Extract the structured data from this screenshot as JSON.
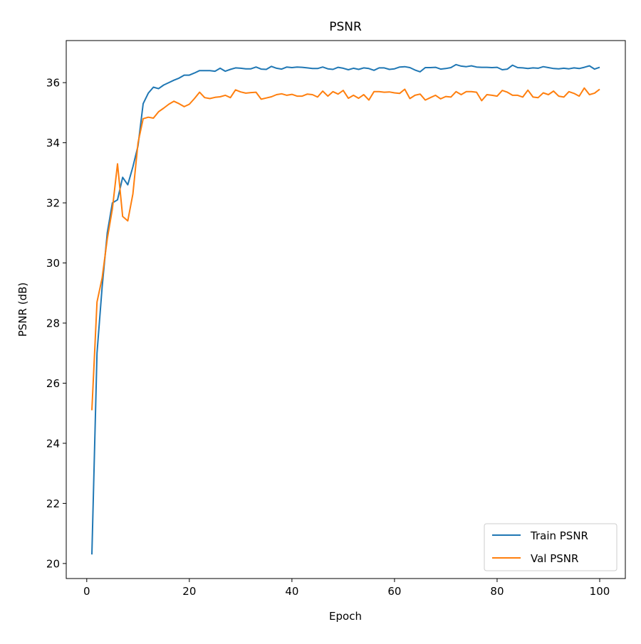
{
  "chart_data": {
    "type": "line",
    "title": "PSNR",
    "xlabel": "Epoch",
    "ylabel": "PSNR (dB)",
    "xlim": [
      -4,
      105
    ],
    "ylim": [
      19.5,
      37.4
    ],
    "xticks": [
      0,
      20,
      40,
      60,
      80,
      100
    ],
    "yticks": [
      20,
      22,
      24,
      26,
      28,
      30,
      32,
      34,
      36
    ],
    "grid": false,
    "legend_position": "lower-right",
    "x": [
      1,
      2,
      3,
      4,
      5,
      6,
      7,
      8,
      9,
      10,
      11,
      12,
      13,
      14,
      15,
      16,
      17,
      18,
      19,
      20,
      21,
      22,
      23,
      24,
      25,
      26,
      27,
      28,
      29,
      30,
      31,
      32,
      33,
      34,
      35,
      36,
      37,
      38,
      39,
      40,
      41,
      42,
      43,
      44,
      45,
      46,
      47,
      48,
      49,
      50,
      51,
      52,
      53,
      54,
      55,
      56,
      57,
      58,
      59,
      60,
      61,
      62,
      63,
      64,
      65,
      66,
      67,
      68,
      69,
      70,
      71,
      72,
      73,
      74,
      75,
      76,
      77,
      78,
      79,
      80,
      81,
      82,
      83,
      84,
      85,
      86,
      87,
      88,
      89,
      90,
      91,
      92,
      93,
      94,
      95,
      96,
      97,
      98,
      99,
      100
    ],
    "series": [
      {
        "name": "Train PSNR",
        "color": "#1f77b4",
        "values": [
          20.3,
          27.0,
          29.2,
          31.0,
          32.0,
          32.1,
          32.85,
          32.6,
          33.2,
          33.9,
          35.3,
          35.65,
          35.85,
          35.8,
          35.92,
          36.0,
          36.08,
          36.15,
          36.25,
          36.25,
          36.32,
          36.4,
          36.4,
          36.4,
          36.38,
          36.48,
          36.38,
          36.44,
          36.49,
          36.48,
          36.46,
          36.46,
          36.52,
          36.45,
          36.44,
          36.54,
          36.48,
          36.45,
          36.52,
          36.5,
          36.52,
          36.51,
          36.49,
          36.47,
          36.47,
          36.52,
          36.46,
          36.44,
          36.51,
          36.48,
          36.43,
          36.48,
          36.44,
          36.49,
          36.47,
          36.41,
          36.49,
          36.49,
          36.44,
          36.46,
          36.52,
          36.53,
          36.5,
          36.42,
          36.36,
          36.5,
          36.5,
          36.51,
          36.45,
          36.47,
          36.5,
          36.6,
          36.55,
          36.53,
          36.56,
          36.52,
          36.51,
          36.51,
          36.5,
          36.51,
          36.43,
          36.45,
          36.58,
          36.5,
          36.49,
          36.47,
          36.49,
          36.48,
          36.53,
          36.5,
          36.47,
          36.46,
          36.48,
          36.46,
          36.49,
          36.47,
          36.51,
          36.56,
          36.45,
          36.51
        ]
      },
      {
        "name": "Val PSNR",
        "color": "#ff7f0e",
        "values": [
          25.1,
          28.7,
          29.5,
          30.8,
          31.8,
          33.3,
          31.55,
          31.4,
          32.3,
          34.0,
          34.8,
          34.85,
          34.82,
          35.03,
          35.15,
          35.28,
          35.38,
          35.3,
          35.2,
          35.28,
          35.47,
          35.68,
          35.5,
          35.47,
          35.51,
          35.53,
          35.58,
          35.5,
          35.76,
          35.69,
          35.65,
          35.67,
          35.68,
          35.45,
          35.49,
          35.53,
          35.6,
          35.63,
          35.58,
          35.61,
          35.55,
          35.55,
          35.62,
          35.6,
          35.52,
          35.72,
          35.55,
          35.7,
          35.62,
          35.74,
          35.48,
          35.58,
          35.48,
          35.6,
          35.42,
          35.7,
          35.7,
          35.68,
          35.69,
          35.66,
          35.64,
          35.78,
          35.47,
          35.58,
          35.62,
          35.42,
          35.5,
          35.58,
          35.46,
          35.54,
          35.52,
          35.7,
          35.6,
          35.7,
          35.7,
          35.68,
          35.4,
          35.6,
          35.58,
          35.55,
          35.74,
          35.68,
          35.58,
          35.58,
          35.52,
          35.75,
          35.52,
          35.5,
          35.66,
          35.6,
          35.72,
          35.55,
          35.52,
          35.7,
          35.64,
          35.55,
          35.82,
          35.6,
          35.65,
          35.78
        ]
      }
    ]
  }
}
